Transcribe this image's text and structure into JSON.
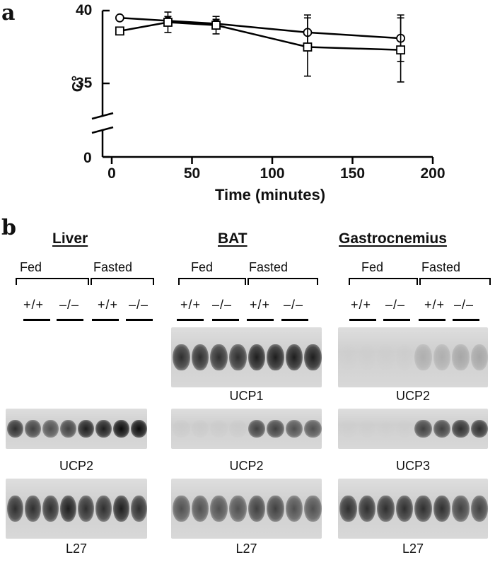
{
  "panel_a": {
    "letter": "a",
    "chart_data": {
      "type": "line",
      "xlabel": "Time (minutes)",
      "ylabel": "C°",
      "x_ticks": [
        "0",
        "50",
        "100",
        "150",
        "200"
      ],
      "y_ticks": [
        "0",
        "35",
        "40"
      ],
      "xlim": [
        0,
        200
      ],
      "ylim_upper_segment": [
        35,
        40
      ],
      "broken_y_axis": true,
      "grid": false,
      "series": [
        {
          "marker": "circle",
          "x": [
            5,
            35,
            65,
            122,
            180
          ],
          "y": [
            39.5,
            39.3,
            39.1,
            38.5,
            38.1
          ],
          "err": [
            0.0,
            0.3,
            0.3,
            1.2,
            1.6
          ]
        },
        {
          "marker": "square",
          "x": [
            5,
            35,
            65,
            122,
            180
          ],
          "y": [
            38.6,
            39.2,
            39.0,
            37.5,
            37.3
          ],
          "err": [
            0.0,
            0.7,
            0.6,
            2.0,
            2.2
          ]
        }
      ]
    }
  },
  "panel_b": {
    "letter": "b",
    "groups": [
      {
        "title": "Liver",
        "fed": "Fed",
        "fasted": "Fasted",
        "genotypes": [
          "+/+",
          "–/–",
          "+/+",
          "–/–"
        ],
        "blots": [
          {
            "label": "UCP2",
            "intensities": [
              0.9,
              0.85,
              0.8,
              0.85,
              0.95,
              0.95,
              1.0,
              1.0
            ]
          },
          {
            "label": "L27",
            "intensities": [
              0.9,
              0.9,
              0.9,
              0.95,
              0.9,
              0.9,
              0.95,
              0.9
            ]
          }
        ]
      },
      {
        "title": "BAT",
        "fed": "Fed",
        "fasted": "Fasted",
        "genotypes": [
          "+/+",
          "–/–",
          "+/+",
          "–/–"
        ],
        "blots": [
          {
            "label": "UCP1",
            "intensities": [
              0.9,
              0.9,
              0.9,
              0.9,
              0.95,
              0.95,
              0.95,
              0.95
            ]
          },
          {
            "label": "UCP2",
            "intensities": [
              0.15,
              0.15,
              0.12,
              0.15,
              0.85,
              0.85,
              0.8,
              0.8
            ]
          },
          {
            "label": "L27",
            "intensities": [
              0.8,
              0.8,
              0.8,
              0.8,
              0.85,
              0.85,
              0.8,
              0.8
            ]
          }
        ]
      },
      {
        "title": "Gastrocnemius",
        "fed": "Fed",
        "fasted": "Fasted",
        "genotypes": [
          "+/+",
          "–/–",
          "+/+",
          "–/–"
        ],
        "blots": [
          {
            "label": "UCP2",
            "intensities": [
              0.03,
              0.05,
              0.05,
              0.07,
              0.4,
              0.4,
              0.45,
              0.45
            ]
          },
          {
            "label": "UCP3",
            "intensities": [
              0.05,
              0.05,
              0.03,
              0.05,
              0.85,
              0.85,
              0.9,
              0.9
            ]
          },
          {
            "label": "L27",
            "intensities": [
              0.9,
              0.9,
              0.9,
              0.9,
              0.9,
              0.9,
              0.85,
              0.85
            ]
          }
        ]
      }
    ]
  }
}
